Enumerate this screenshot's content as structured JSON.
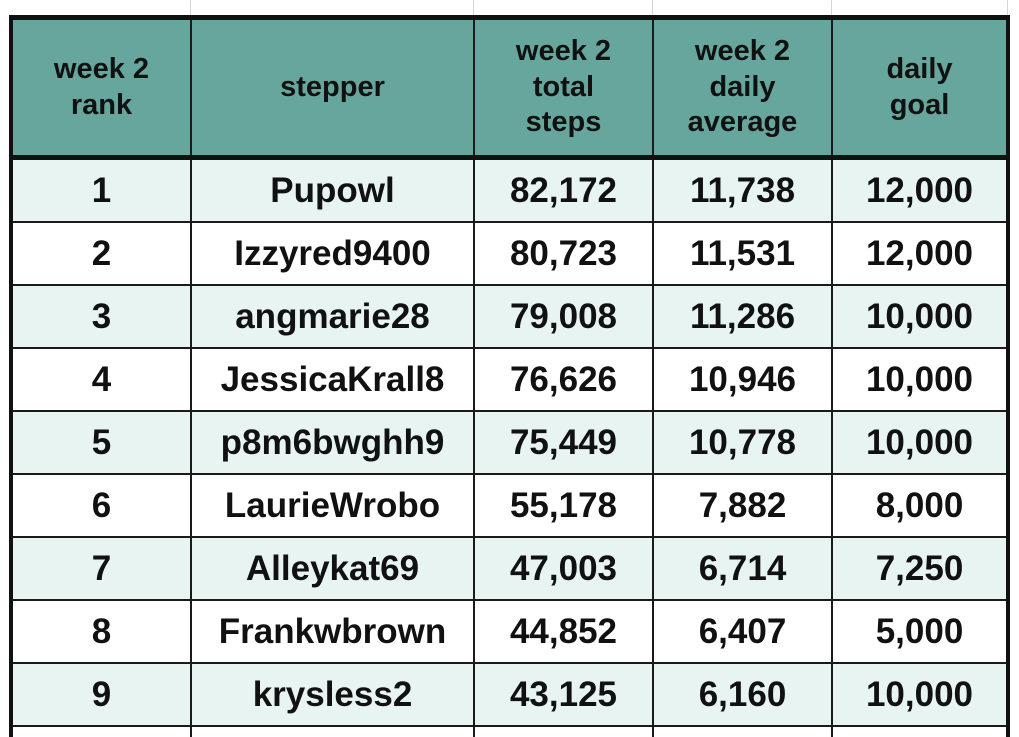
{
  "table": {
    "headers": [
      [
        "week 2",
        "rank"
      ],
      [
        "stepper"
      ],
      [
        "week 2",
        "total",
        "steps"
      ],
      [
        "week 2",
        "daily",
        "average"
      ],
      [
        "daily",
        "goal"
      ]
    ],
    "rows": [
      [
        "1",
        "Pupowl",
        "82,172",
        "11,738",
        "12,000"
      ],
      [
        "2",
        "Izzyred9400",
        "80,723",
        "11,531",
        "12,000"
      ],
      [
        "3",
        "angmarie28",
        "79,008",
        "11,286",
        "10,000"
      ],
      [
        "4",
        "JessicaKrall8",
        "76,626",
        "10,946",
        "10,000"
      ],
      [
        "5",
        "p8m6bwghh9",
        "75,449",
        "10,778",
        "10,000"
      ],
      [
        "6",
        "LaurieWrobo",
        "55,178",
        "7,882",
        "8,000"
      ],
      [
        "7",
        "Alleykat69",
        "47,003",
        "6,714",
        "7,250"
      ],
      [
        "8",
        "Frankwbrown",
        "44,852",
        "6,407",
        "5,000"
      ],
      [
        "9",
        "krysless2",
        "43,125",
        "6,160",
        "10,000"
      ]
    ]
  },
  "colors": {
    "header_background": "#67a69d",
    "band_background": "#e7f4f2",
    "border": "#111111"
  }
}
